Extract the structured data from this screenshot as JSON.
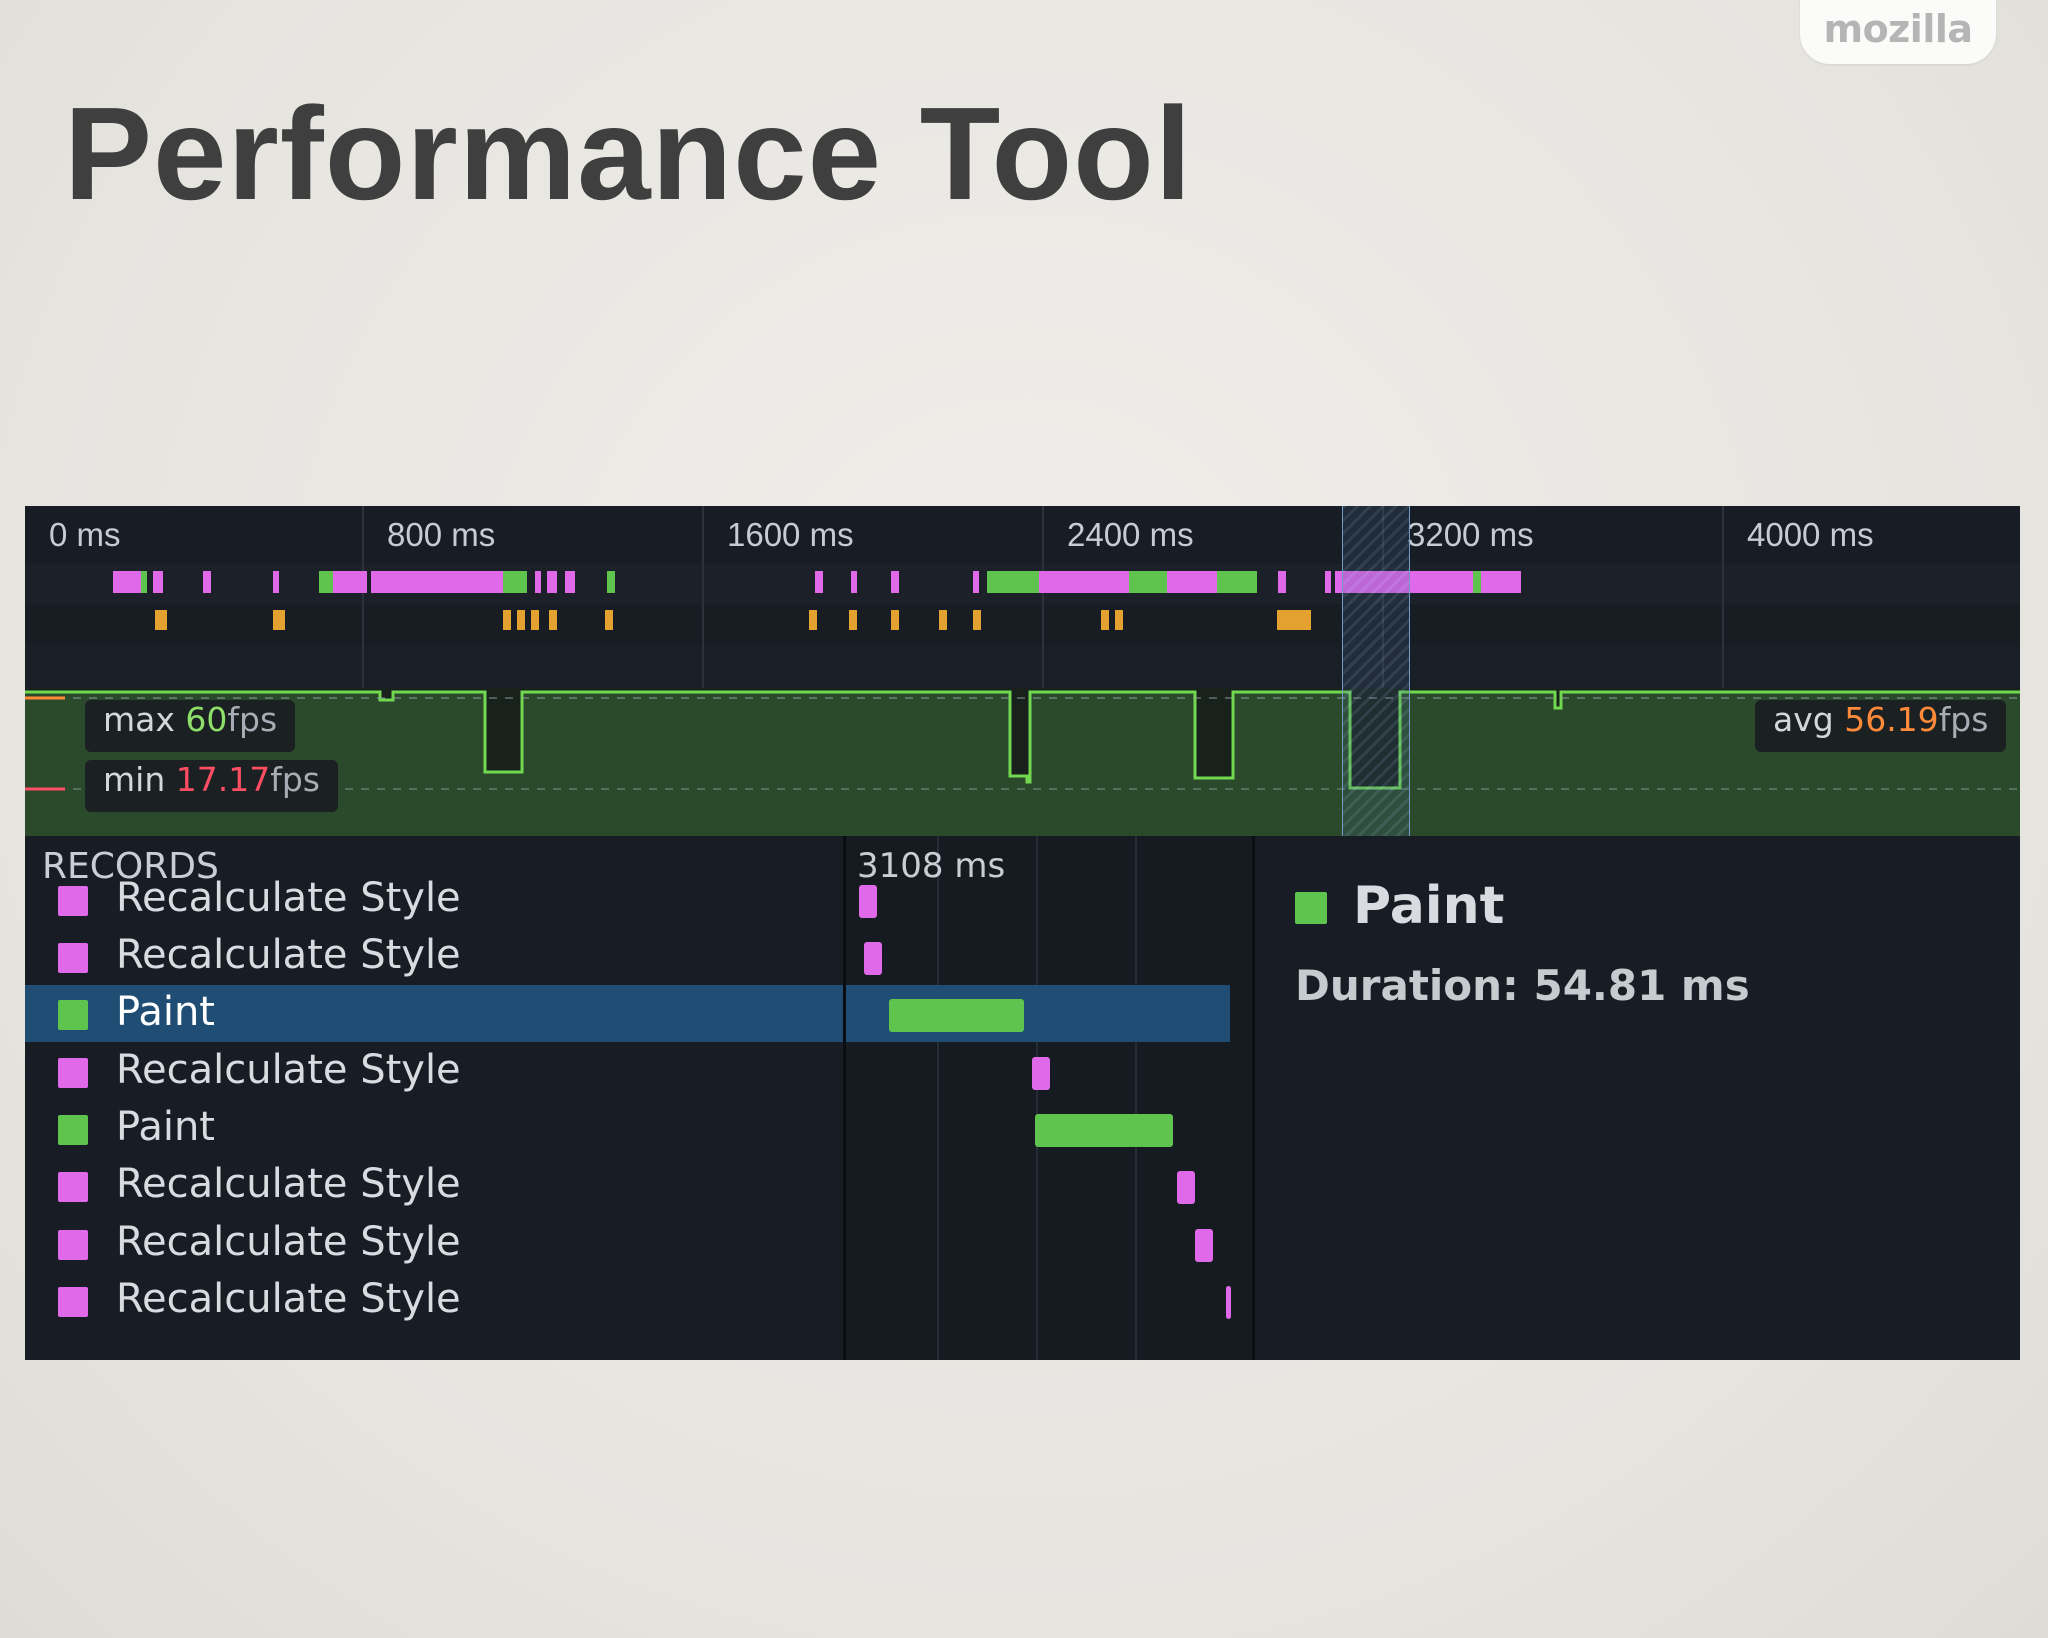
{
  "slide": {
    "title": "Performance Tool",
    "brand": "mozilla"
  },
  "overview": {
    "ticks": [
      "0 ms",
      "800 ms",
      "1600 ms",
      "2400 ms",
      "3200 ms",
      "4000 ms"
    ]
  },
  "fps": {
    "max_label": "max",
    "max_value": "60",
    "min_label": "min",
    "min_value": "17.17",
    "avg_label": "avg",
    "avg_value": "56.19",
    "unit": "fps"
  },
  "records": {
    "header": "RECORDS",
    "waterfall_time": "3108 ms",
    "items": [
      {
        "label": "Recalculate Style",
        "type": "style"
      },
      {
        "label": "Recalculate Style",
        "type": "style"
      },
      {
        "label": "Paint",
        "type": "paint",
        "selected": true
      },
      {
        "label": "Recalculate Style",
        "type": "style"
      },
      {
        "label": "Paint",
        "type": "paint"
      },
      {
        "label": "Recalculate Style",
        "type": "style"
      },
      {
        "label": "Recalculate Style",
        "type": "style"
      },
      {
        "label": "Recalculate Style",
        "type": "style"
      }
    ]
  },
  "details": {
    "title": "Paint",
    "duration": "Duration: 54.81 ms"
  },
  "colors": {
    "style": "#e069ea",
    "paint": "#5ec44d",
    "gc": "#e5a130",
    "selected_row": "#1f4d73"
  }
}
